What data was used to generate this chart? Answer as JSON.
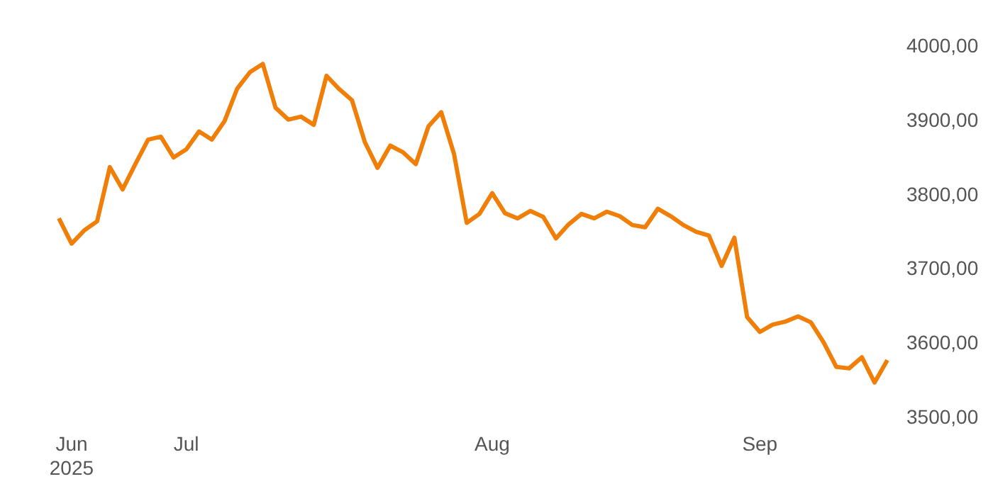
{
  "chart_data": {
    "type": "line",
    "categories": [
      null,
      "Jun\n2025",
      null,
      null,
      null,
      null,
      null,
      null,
      null,
      null,
      "Jul",
      null,
      null,
      null,
      null,
      null,
      null,
      null,
      null,
      null,
      null,
      null,
      null,
      null,
      null,
      null,
      null,
      null,
      null,
      null,
      null,
      null,
      null,
      null,
      "Aug",
      null,
      null,
      null,
      null,
      null,
      null,
      null,
      null,
      null,
      null,
      null,
      null,
      null,
      null,
      null,
      null,
      null,
      null,
      null,
      null,
      "Sep",
      null,
      null,
      null,
      null,
      null,
      null,
      null,
      null,
      null,
      null
    ],
    "series": [
      {
        "color": "#f07f09",
        "values": [
          3767,
          3733,
          3751,
          3763,
          3836,
          3806,
          3840,
          3873,
          3877,
          3849,
          3860,
          3884,
          3873,
          3898,
          3942,
          3964,
          3975,
          3916,
          3900,
          3904,
          3893,
          3959,
          3941,
          3926,
          3870,
          3835,
          3865,
          3856,
          3840,
          3891,
          3910,
          3854,
          3761,
          3773,
          3801,
          3774,
          3767,
          3777,
          3769,
          3740,
          3759,
          3773,
          3767,
          3776,
          3770,
          3758,
          3755,
          3780,
          3770,
          3758,
          3749,
          3744,
          3703,
          3741,
          3634,
          3614,
          3624,
          3628,
          3635,
          3627,
          3600,
          3567,
          3565,
          3580,
          3546,
          3576
        ]
      }
    ],
    "ylim": [
      3500,
      4000
    ],
    "yticks": [
      {
        "value": 3500,
        "label": "3500,00"
      },
      {
        "value": 3600,
        "label": "3600,00"
      },
      {
        "value": 3700,
        "label": "3700,00"
      },
      {
        "value": 3800,
        "label": "3800,00"
      },
      {
        "value": 3900,
        "label": "3900,00"
      },
      {
        "value": 4000,
        "label": "4000,00"
      }
    ],
    "grid": false,
    "legend": false,
    "marker": "none",
    "line_style": "solid"
  }
}
